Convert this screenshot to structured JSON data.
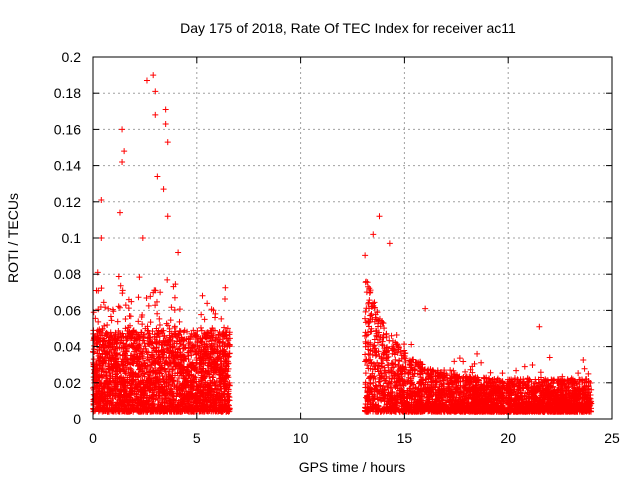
{
  "chart_data": {
    "type": "scatter",
    "title": "Day 175 of 2018, Rate Of TEC Index for receiver ac11",
    "xlabel": "GPS time / hours",
    "ylabel": "ROTI / TECUs",
    "xlim": [
      0,
      25
    ],
    "ylim": [
      0,
      0.2
    ],
    "x_ticks": [
      0,
      5,
      10,
      15,
      20,
      25
    ],
    "y_ticks": [
      0,
      0.02,
      0.04,
      0.06,
      0.08,
      0.1,
      0.12,
      0.14,
      0.16,
      0.18,
      0.2
    ],
    "grid": true,
    "marker": "plus",
    "series_color": "#ff0000",
    "clusters": [
      {
        "x_range": [
          0.0,
          6.6
        ],
        "typical_y": [
          0.003,
          0.06
        ],
        "description": "dense band of points, highest density below 0.04"
      },
      {
        "x_range": [
          13.1,
          24.0
        ],
        "typical_y": [
          0.003,
          0.03
        ],
        "description": "dense band of points, decaying from ~0.09 near 13.5 h to ~0.02"
      }
    ],
    "notable_points": [
      {
        "x": 2.6,
        "y": 0.187
      },
      {
        "x": 2.9,
        "y": 0.19
      },
      {
        "x": 3.0,
        "y": 0.181
      },
      {
        "x": 3.0,
        "y": 0.168
      },
      {
        "x": 3.5,
        "y": 0.171
      },
      {
        "x": 3.5,
        "y": 0.163
      },
      {
        "x": 3.6,
        "y": 0.153
      },
      {
        "x": 1.4,
        "y": 0.16
      },
      {
        "x": 1.5,
        "y": 0.148
      },
      {
        "x": 1.4,
        "y": 0.142
      },
      {
        "x": 3.1,
        "y": 0.134
      },
      {
        "x": 3.4,
        "y": 0.127
      },
      {
        "x": 0.4,
        "y": 0.121
      },
      {
        "x": 1.3,
        "y": 0.114
      },
      {
        "x": 3.6,
        "y": 0.112
      },
      {
        "x": 0.4,
        "y": 0.1
      },
      {
        "x": 2.4,
        "y": 0.1
      },
      {
        "x": 4.1,
        "y": 0.092
      },
      {
        "x": 13.8,
        "y": 0.112
      },
      {
        "x": 13.5,
        "y": 0.102
      },
      {
        "x": 14.3,
        "y": 0.097
      },
      {
        "x": 16.0,
        "y": 0.061
      },
      {
        "x": 21.5,
        "y": 0.051
      },
      {
        "x": 18.5,
        "y": 0.036
      },
      {
        "x": 22.0,
        "y": 0.034
      }
    ]
  }
}
